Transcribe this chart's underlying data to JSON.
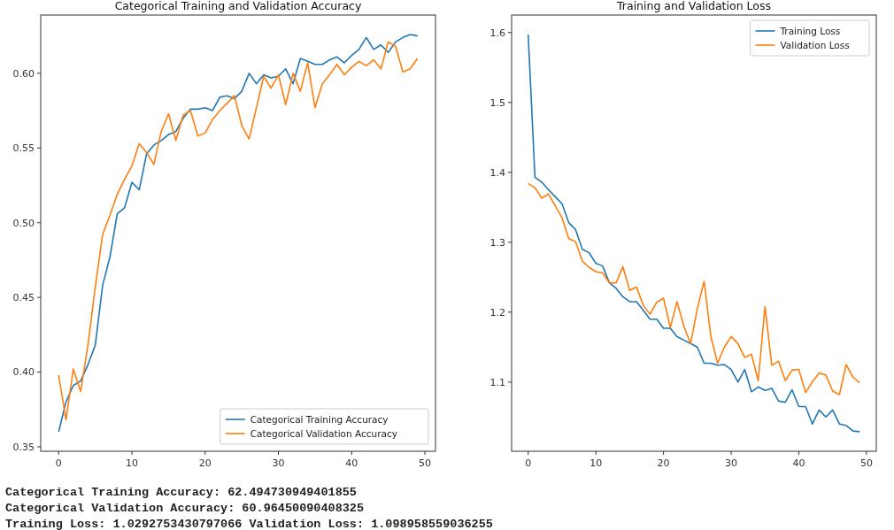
{
  "chart_data": [
    {
      "type": "line",
      "title": "Categorical Training and Validation Accuracy",
      "x": [
        0,
        1,
        2,
        3,
        4,
        5,
        6,
        7,
        8,
        9,
        10,
        11,
        12,
        13,
        14,
        15,
        16,
        17,
        18,
        19,
        20,
        21,
        22,
        23,
        24,
        25,
        26,
        27,
        28,
        29,
        30,
        31,
        32,
        33,
        34,
        35,
        36,
        37,
        38,
        39,
        40,
        41,
        42,
        43,
        44,
        45,
        46,
        47,
        48,
        49
      ],
      "series": [
        {
          "name": "Categorical Training Accuracy",
          "color": "#1f77b4",
          "values": [
            0.36,
            0.38,
            0.391,
            0.394,
            0.405,
            0.418,
            0.458,
            0.477,
            0.506,
            0.51,
            0.527,
            0.522,
            0.546,
            0.552,
            0.555,
            0.559,
            0.561,
            0.57,
            0.576,
            0.576,
            0.577,
            0.575,
            0.584,
            0.585,
            0.583,
            0.588,
            0.6,
            0.593,
            0.599,
            0.597,
            0.598,
            0.603,
            0.593,
            0.61,
            0.608,
            0.606,
            0.606,
            0.609,
            0.611,
            0.607,
            0.612,
            0.616,
            0.624,
            0.616,
            0.619,
            0.614,
            0.621,
            0.624,
            0.626,
            0.625
          ]
        },
        {
          "name": "Categorical Validation Accuracy",
          "color": "#ff7f0e",
          "values": [
            0.398,
            0.368,
            0.402,
            0.387,
            0.418,
            0.457,
            0.492,
            0.505,
            0.519,
            0.529,
            0.538,
            0.553,
            0.547,
            0.539,
            0.561,
            0.573,
            0.555,
            0.572,
            0.575,
            0.558,
            0.56,
            0.569,
            0.575,
            0.58,
            0.585,
            0.565,
            0.556,
            0.577,
            0.598,
            0.59,
            0.599,
            0.579,
            0.6,
            0.588,
            0.607,
            0.577,
            0.593,
            0.599,
            0.606,
            0.599,
            0.604,
            0.608,
            0.605,
            0.609,
            0.603,
            0.621,
            0.618,
            0.601,
            0.603,
            0.61
          ]
        }
      ],
      "xlim": [
        -2.45,
        51.45
      ],
      "xticks": [
        0,
        10,
        20,
        30,
        40,
        50
      ],
      "ylim": [
        0.347,
        0.639
      ],
      "yticks": [
        {
          "value": 0.35,
          "label": "0.35"
        },
        {
          "value": 0.4,
          "label": "0.40"
        },
        {
          "value": 0.45,
          "label": "0.45"
        },
        {
          "value": 0.5,
          "label": "0.50"
        },
        {
          "value": 0.55,
          "label": "0.55"
        },
        {
          "value": 0.6,
          "label": "0.60"
        }
      ],
      "legend": "bottom right",
      "annotations": [
        "Categorical Training Accuracy: 62.494730949401855",
        "Categorical Validation Accuracy: 60.96450090408325",
        "Training Loss: 1.0292753430797066 Validation Loss: 1.098958559036255"
      ]
    },
    {
      "type": "line",
      "title": "Training and Validation Loss",
      "x": [
        0,
        1,
        2,
        3,
        4,
        5,
        6,
        7,
        8,
        9,
        10,
        11,
        12,
        13,
        14,
        15,
        16,
        17,
        18,
        19,
        20,
        21,
        22,
        23,
        24,
        25,
        26,
        27,
        28,
        29,
        30,
        31,
        32,
        33,
        34,
        35,
        36,
        37,
        38,
        39,
        40,
        41,
        42,
        43,
        44,
        45,
        46,
        47,
        48,
        49
      ],
      "series": [
        {
          "name": "Training Loss",
          "color": "#1f77b4",
          "values": [
            1.597,
            1.393,
            1.386,
            1.375,
            1.365,
            1.355,
            1.328,
            1.318,
            1.29,
            1.285,
            1.27,
            1.266,
            1.242,
            1.234,
            1.222,
            1.215,
            1.215,
            1.203,
            1.19,
            1.19,
            1.177,
            1.177,
            1.165,
            1.16,
            1.155,
            1.15,
            1.127,
            1.127,
            1.124,
            1.125,
            1.118,
            1.1,
            1.118,
            1.086,
            1.093,
            1.088,
            1.091,
            1.073,
            1.071,
            1.089,
            1.065,
            1.065,
            1.04,
            1.06,
            1.05,
            1.06,
            1.04,
            1.038,
            1.03,
            1.029
          ]
        },
        {
          "name": "Validation Loss",
          "color": "#ff7f0e",
          "values": [
            1.384,
            1.378,
            1.363,
            1.369,
            1.352,
            1.335,
            1.305,
            1.301,
            1.273,
            1.264,
            1.258,
            1.256,
            1.242,
            1.242,
            1.265,
            1.231,
            1.236,
            1.21,
            1.197,
            1.214,
            1.22,
            1.178,
            1.215,
            1.18,
            1.155,
            1.205,
            1.244,
            1.165,
            1.127,
            1.15,
            1.165,
            1.155,
            1.135,
            1.14,
            1.102,
            1.208,
            1.124,
            1.13,
            1.102,
            1.117,
            1.118,
            1.085,
            1.1,
            1.113,
            1.11,
            1.087,
            1.082,
            1.125,
            1.107,
            1.099
          ]
        }
      ],
      "xlim": [
        -2.45,
        51.45
      ],
      "xticks": [
        0,
        10,
        20,
        30,
        40,
        50
      ],
      "ylim": [
        1.001,
        1.625
      ],
      "yticks": [
        1.1,
        1.2,
        1.3,
        1.4,
        1.5,
        1.6
      ],
      "legend": "top right"
    }
  ]
}
